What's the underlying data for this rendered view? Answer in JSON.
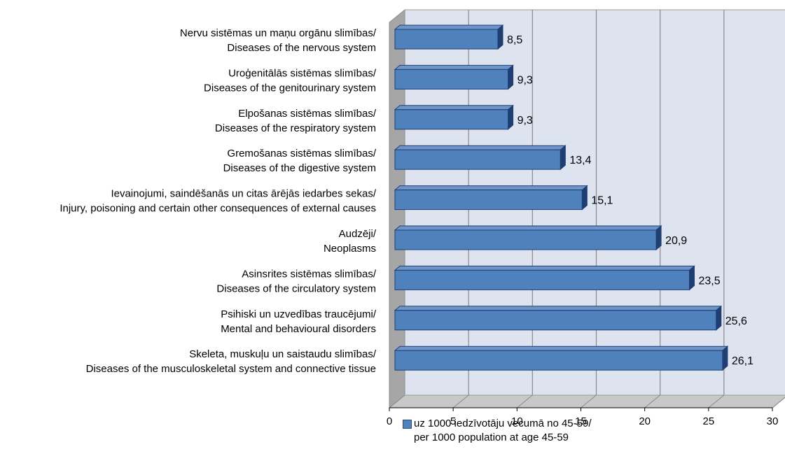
{
  "chart_data": {
    "type": "bar",
    "orientation": "horizontal",
    "categories": [
      [
        "Nervu sistēmas un maņu orgānu slimības/",
        "Diseases of the nervous system"
      ],
      [
        "Uroģenitālās sistēmas slimības/",
        "Diseases of the genitourinary system"
      ],
      [
        "Elpošanas sistēmas slimības/",
        "Diseases of the respiratory system"
      ],
      [
        "Gremošanas sistēmas slimības/",
        "Diseases of the digestive system"
      ],
      [
        "Ievainojumi, saindēšanās un citas ārējās iedarbes sekas/",
        "Injury, poisoning and certain other consequences of external causes"
      ],
      [
        "Audzēji/",
        "Neoplasms"
      ],
      [
        "Asinsrites sistēmas slimības/",
        "Diseases of the circulatory system"
      ],
      [
        "Psihiski un uzvedības traucējumi/",
        "Mental and behavioural disorders"
      ],
      [
        "Skeleta, muskuļu un saistaudu slimības/",
        "Diseases of the musculoskeletal system and connective tissue"
      ]
    ],
    "series": [
      {
        "name": "uz 1000 iedzīvotāju vecumā no 45-59/ per 1000 population at age 45-59",
        "values": [
          8.5,
          9.3,
          9.3,
          13.4,
          15.1,
          20.9,
          23.5,
          25.6,
          26.1
        ],
        "value_labels": [
          "8,5",
          "9,3",
          "9,3",
          "13,4",
          "15,1",
          "20,9",
          "23,5",
          "25,6",
          "26,1"
        ]
      }
    ],
    "xlim": [
      0,
      30
    ],
    "xticks": [
      "0",
      "5",
      "10",
      "15",
      "20",
      "25",
      "30"
    ],
    "grid": true,
    "three_d": true,
    "legend_position": "bottom",
    "colors": {
      "bar": "#4f81bd",
      "bar_top": "#6f95c8",
      "bar_side": "#1f3f73",
      "plot_back": "#dde3ef",
      "floor": "#c8c8c8"
    }
  },
  "legend": {
    "line1": "uz 1000 iedzīvotāju vecumā no 45-59/",
    "line2": "per 1000 population at age 45-59"
  }
}
